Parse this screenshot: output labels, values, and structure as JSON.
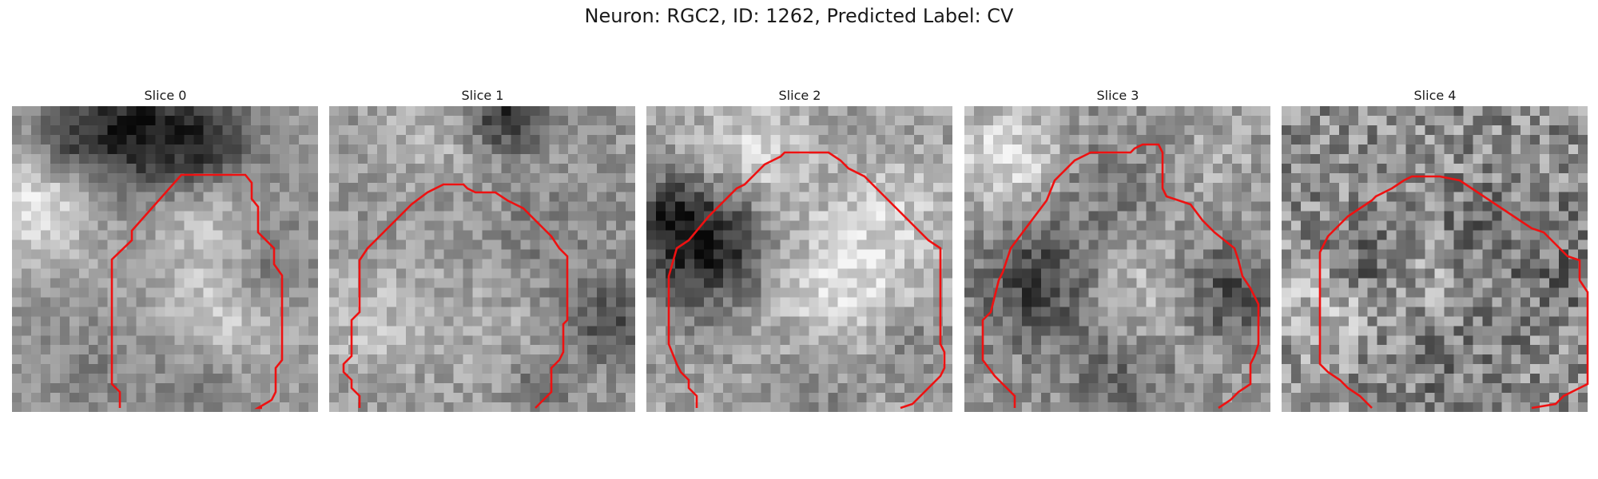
{
  "figure": {
    "title": "Neuron: RGC2, ID: 1262, Predicted Label: CV"
  },
  "panels": [
    {
      "label": "Slice 0"
    },
    {
      "label": "Slice 1"
    },
    {
      "label": "Slice 2"
    },
    {
      "label": "Slice 3"
    },
    {
      "label": "Slice 4"
    }
  ],
  "colors": {
    "contour": "#ee1111",
    "colormap": "gray"
  }
}
